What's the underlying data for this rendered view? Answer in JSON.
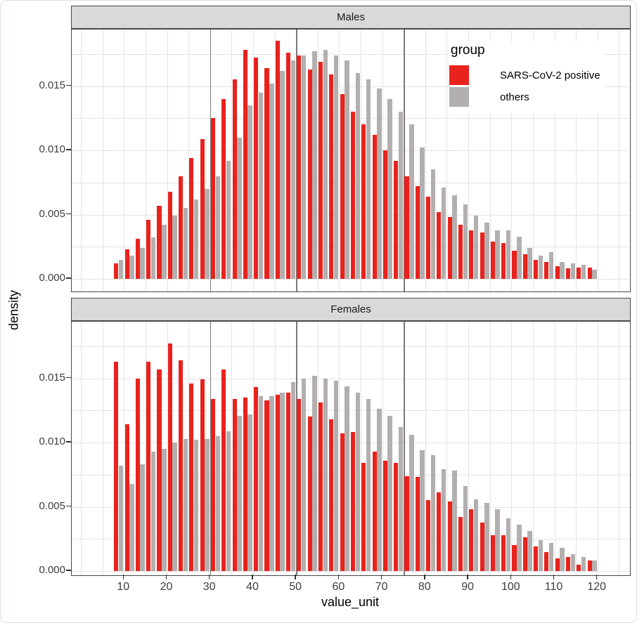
{
  "chart_data": {
    "type": "bar",
    "subtype": "dodged-histogram-facets",
    "xlabel": "value_unit",
    "ylabel": "density",
    "x_ticks": [
      "10",
      "20",
      "30",
      "40",
      "50",
      "60",
      "70",
      "80",
      "90",
      "100",
      "110",
      "120"
    ],
    "x_tick_values": [
      10,
      20,
      30,
      40,
      50,
      60,
      70,
      80,
      90,
      100,
      110,
      120
    ],
    "y_ticks": [
      "0.000",
      "0.005",
      "0.010",
      "0.015"
    ],
    "y_tick_values": [
      0.0,
      0.005,
      0.01,
      0.015
    ],
    "xlim": [
      -2,
      128
    ],
    "ylim": [
      -0.0011,
      0.0194
    ],
    "grid": "on",
    "minor_grid_x_step": 5,
    "minor_grid_y_step": 0.0025,
    "reference_lines_x": [
      30,
      50,
      75
    ],
    "bin_width": 2.5,
    "bin_centers": [
      8.75,
      11.25,
      13.75,
      16.25,
      18.75,
      21.25,
      23.75,
      26.25,
      28.75,
      31.25,
      33.75,
      36.25,
      38.75,
      41.25,
      43.75,
      46.25,
      48.75,
      51.25,
      53.75,
      56.25,
      58.75,
      61.25,
      63.75,
      66.25,
      68.75,
      71.25,
      73.75,
      76.25,
      78.75,
      81.25,
      83.75,
      86.25,
      88.75,
      91.25,
      93.75,
      96.25,
      98.75,
      101.25,
      103.75,
      106.25,
      108.75,
      111.25,
      113.75,
      116.25,
      118.75
    ],
    "facets": [
      {
        "label": "Males",
        "series": [
          {
            "name": "SARS-CoV-2 positive",
            "color": "#e9221d",
            "values": [
              0.0012,
              0.0023,
              0.0031,
              0.0046,
              0.0057,
              0.0068,
              0.008,
              0.0094,
              0.0109,
              0.0125,
              0.014,
              0.0155,
              0.0178,
              0.0172,
              0.0164,
              0.0185,
              0.0176,
              0.0174,
              0.0163,
              0.0169,
              0.0159,
              0.0144,
              0.013,
              0.012,
              0.0112,
              0.01,
              0.0092,
              0.008,
              0.0072,
              0.0064,
              0.0052,
              0.0048,
              0.0042,
              0.0038,
              0.0036,
              0.0029,
              0.0028,
              0.0022,
              0.0019,
              0.0015,
              0.0013,
              0.001,
              0.0008,
              0.0009,
              0.0009
            ]
          },
          {
            "name": "others",
            "color": "#b4afaf",
            "values": [
              0.0015,
              0.0018,
              0.0024,
              0.0032,
              0.0042,
              0.0049,
              0.0055,
              0.0062,
              0.007,
              0.008,
              0.0092,
              0.011,
              0.0135,
              0.0145,
              0.0152,
              0.0162,
              0.017,
              0.0174,
              0.0177,
              0.0178,
              0.0174,
              0.017,
              0.016,
              0.0155,
              0.0148,
              0.014,
              0.013,
              0.012,
              0.0102,
              0.0085,
              0.0071,
              0.0065,
              0.0058,
              0.0049,
              0.0044,
              0.0038,
              0.0038,
              0.0033,
              0.0024,
              0.0018,
              0.0021,
              0.0013,
              0.0012,
              0.0011,
              0.0007
            ]
          }
        ]
      },
      {
        "label": "Females",
        "series": [
          {
            "name": "SARS-CoV-2 positive",
            "color": "#e9221d",
            "values": [
              0.0163,
              0.0114,
              0.015,
              0.0163,
              0.0157,
              0.0177,
              0.0164,
              0.0146,
              0.0149,
              0.0134,
              0.0157,
              0.0134,
              0.0135,
              0.0143,
              0.0133,
              0.0137,
              0.0139,
              0.0134,
              0.012,
              0.0131,
              0.0118,
              0.0107,
              0.0108,
              0.0084,
              0.0093,
              0.0086,
              0.0084,
              0.0074,
              0.0073,
              0.0055,
              0.0061,
              0.0054,
              0.0042,
              0.0048,
              0.0038,
              0.0028,
              0.0028,
              0.002,
              0.0026,
              0.0019,
              0.0015,
              0.001,
              0.0011,
              0.0005,
              0.0008
            ]
          },
          {
            "name": "others",
            "color": "#b4afaf",
            "values": [
              0.0082,
              0.0068,
              0.0083,
              0.0093,
              0.0095,
              0.01,
              0.0103,
              0.0102,
              0.0103,
              0.0105,
              0.0109,
              0.0121,
              0.0122,
              0.0136,
              0.0136,
              0.0139,
              0.0147,
              0.015,
              0.0152,
              0.015,
              0.0148,
              0.0144,
              0.0139,
              0.0134,
              0.0126,
              0.0121,
              0.0112,
              0.0106,
              0.0094,
              0.009,
              0.0079,
              0.0078,
              0.0066,
              0.0056,
              0.0053,
              0.0048,
              0.0041,
              0.0036,
              0.0031,
              0.0024,
              0.0022,
              0.0018,
              0.0013,
              0.0011,
              0.0008
            ]
          }
        ]
      }
    ],
    "legend": {
      "title": "group",
      "position": "inside-top-right-males-panel",
      "entries": [
        {
          "label": "SARS-CoV-2 positive",
          "color": "#e9221d"
        },
        {
          "label": "others",
          "color": "#b4afaf"
        }
      ]
    },
    "colors": {
      "positive": "#e9221d",
      "others": "#b4afaf",
      "strip_background": "#d9d9d9",
      "panel_border": "#474747",
      "gridline": "#e4e4e4",
      "reference_line": "#7b7b7b",
      "tick_text": "#3d3d3d"
    }
  }
}
